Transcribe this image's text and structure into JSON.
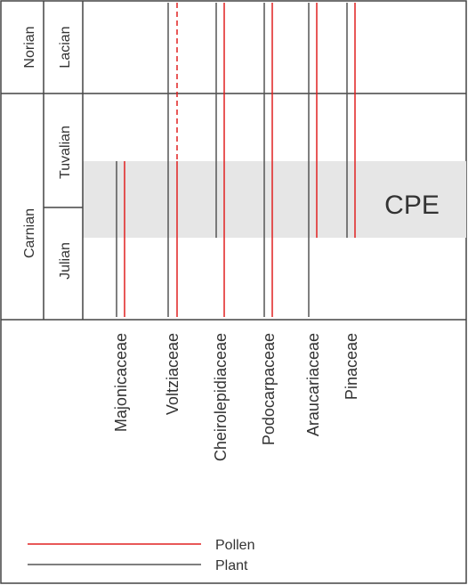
{
  "stages": {
    "norian": "Norian",
    "carnian": "Carnian"
  },
  "substages": {
    "lacian": "Lacian",
    "tuvalian": "Tuvalian",
    "julian": "Julian"
  },
  "event": {
    "label": "CPE",
    "fill_color": "#e6e6e6"
  },
  "families": [
    {
      "name": "Majonicaceae",
      "plant": {
        "from": "CPE base",
        "to": "Julian (lower)"
      },
      "pollen": {
        "from": "CPE base",
        "to": "Julian (lower)"
      }
    },
    {
      "name": "Voltziaceae",
      "plant": {
        "from": "Norian",
        "to": "Julian (lower)"
      },
      "pollen": {
        "from": "Norian (uncertain, dashed) / Tuvalian",
        "to": "Julian (lower)"
      }
    },
    {
      "name": "Cheirolepidiaceae",
      "plant": {
        "from": "Norian",
        "to": "CPE top"
      },
      "pollen": {
        "from": "Norian",
        "to": "Julian (lower)"
      }
    },
    {
      "name": "Podocarpaceae",
      "plant": {
        "from": "Norian",
        "to": "Julian (lower)"
      },
      "pollen": {
        "from": "Norian",
        "to": "Julian (lower)"
      }
    },
    {
      "name": "Araucariaceae",
      "plant": {
        "from": "Norian",
        "to": "Julian (lower)"
      },
      "pollen": {
        "from": "Norian",
        "to": "CPE top"
      }
    },
    {
      "name": "Pinaceae",
      "plant": {
        "from": "Norian",
        "to": "CPE top"
      },
      "pollen": {
        "from": "Norian",
        "to": "CPE top"
      }
    }
  ],
  "legend": {
    "pollen_label": "Pollen",
    "plant_label": "Plant",
    "pollen_color": "#e02020",
    "plant_color": "#555555"
  }
}
